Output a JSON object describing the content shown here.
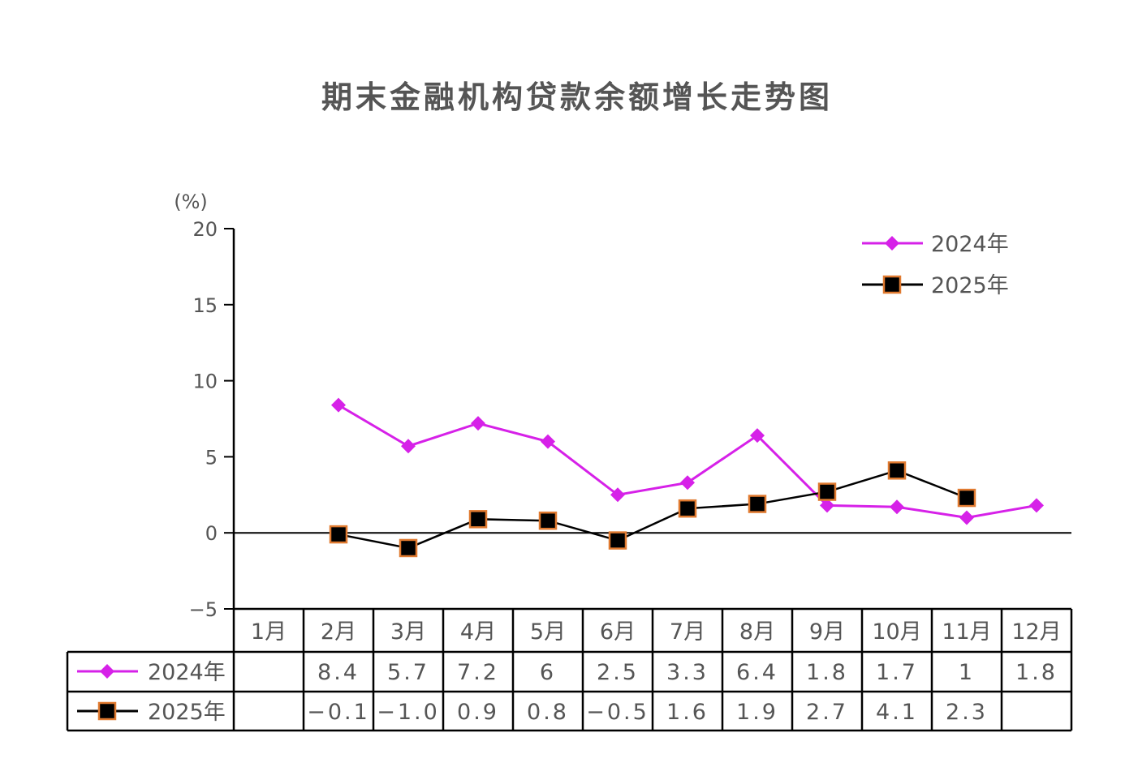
{
  "chart_data": {
    "type": "line",
    "title": "期末金融机构贷款余额增长走势图",
    "ylabel": "(%)",
    "ylim": [
      -5,
      20
    ],
    "yticks": [
      "20",
      "15",
      "10",
      "5",
      "0",
      "−5"
    ],
    "ytick_values": [
      20,
      15,
      10,
      5,
      0,
      -5
    ],
    "categories": [
      "1月",
      "2月",
      "3月",
      "4月",
      "5月",
      "6月",
      "7月",
      "8月",
      "9月",
      "10月",
      "11月",
      "12月"
    ],
    "legend_position": "top-right",
    "series": [
      {
        "name": "2024年",
        "color": "#d621e8",
        "marker": "diamond",
        "values": [
          null,
          8.4,
          5.7,
          7.2,
          6,
          2.5,
          3.3,
          6.4,
          1.8,
          1.7,
          1,
          1.8
        ],
        "labels": [
          "",
          "8.4",
          "5.7",
          "7.2",
          "6",
          "2.5",
          "3.3",
          "6.4",
          "1.8",
          "1.7",
          "1",
          "1.8"
        ]
      },
      {
        "name": "2025年",
        "color": "#000000",
        "marker_edge": "#e07a30",
        "marker": "square",
        "values": [
          null,
          -0.1,
          -1.0,
          0.9,
          0.8,
          -0.5,
          1.6,
          1.9,
          2.7,
          4.1,
          2.3,
          null
        ],
        "labels": [
          "",
          "−0.1",
          "−1.0",
          "0.9",
          "0.8",
          "−0.5",
          "1.6",
          "1.9",
          "2.7",
          "4.1",
          "2.3",
          ""
        ]
      }
    ]
  }
}
